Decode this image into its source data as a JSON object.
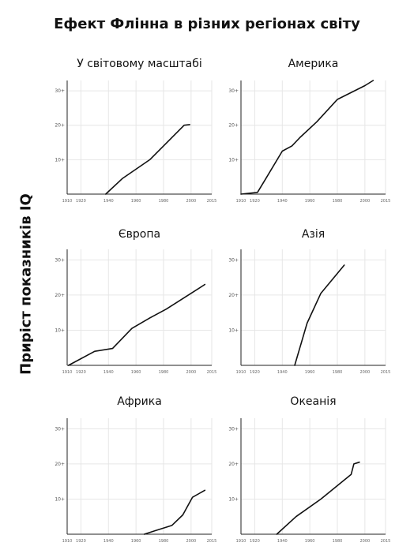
{
  "title": "Ефект Флінна в різних регіонах світу",
  "ylabel": "Приріст показників IQ",
  "chart_data": [
    {
      "type": "line",
      "title": "У світовому масштабі",
      "xlim": [
        1910,
        2015
      ],
      "ylim": [
        0,
        33
      ],
      "x_ticks": [
        "1910",
        "1920",
        "1940",
        "1960",
        "1980",
        "2000",
        "2015"
      ],
      "y_ticks": [
        "10+",
        "20+",
        "30+"
      ],
      "grid": true,
      "x": [
        1938,
        1950,
        1970,
        1985,
        1995,
        1999
      ],
      "y": [
        0,
        4.5,
        10,
        16,
        20,
        20.2
      ]
    },
    {
      "type": "line",
      "title": "Америка",
      "xlim": [
        1910,
        2015
      ],
      "ylim": [
        0,
        33
      ],
      "x_ticks": [
        "1910",
        "1920",
        "1940",
        "1960",
        "1980",
        "2000",
        "2015"
      ],
      "y_ticks": [
        "10+",
        "20+",
        "30+"
      ],
      "grid": true,
      "x": [
        1910,
        1922,
        1928,
        1940,
        1947,
        1953,
        1965,
        1980,
        2000,
        2006
      ],
      "y": [
        0,
        0.5,
        4.5,
        12.5,
        14,
        16.5,
        21,
        27.5,
        31.5,
        33
      ]
    },
    {
      "type": "line",
      "title": "Європа",
      "xlim": [
        1910,
        2015
      ],
      "ylim": [
        0,
        33
      ],
      "x_ticks": [
        "1910",
        "1920",
        "1940",
        "1960",
        "1980",
        "2000",
        "2015"
      ],
      "y_ticks": [
        "10+",
        "20+",
        "30+"
      ],
      "grid": true,
      "x": [
        1911,
        1930,
        1943,
        1957,
        1970,
        1982,
        2000,
        2010
      ],
      "y": [
        0,
        4,
        4.8,
        10.5,
        13.5,
        16,
        20.5,
        23
      ]
    },
    {
      "type": "line",
      "title": "Азія",
      "xlim": [
        1910,
        2015
      ],
      "ylim": [
        0,
        33
      ],
      "x_ticks": [
        "1910",
        "1920",
        "1940",
        "1960",
        "1980",
        "2000",
        "2015"
      ],
      "y_ticks": [
        "10+",
        "20+",
        "30+"
      ],
      "grid": true,
      "x": [
        1949,
        1958,
        1968,
        1985
      ],
      "y": [
        0,
        12,
        20.5,
        28.5
      ]
    },
    {
      "type": "line",
      "title": "Африка",
      "xlim": [
        1910,
        2015
      ],
      "ylim": [
        0,
        33
      ],
      "x_ticks": [
        "1910",
        "1920",
        "1940",
        "1960",
        "1980",
        "2000",
        "2015"
      ],
      "y_ticks": [
        "10+",
        "20+",
        "30+"
      ],
      "grid": true,
      "x": [
        1966,
        1974,
        1986,
        1994,
        2001,
        2010
      ],
      "y": [
        0,
        1,
        2.5,
        5.5,
        10.5,
        12.5
      ]
    },
    {
      "type": "line",
      "title": "Океанія",
      "xlim": [
        1910,
        2015
      ],
      "ylim": [
        0,
        33
      ],
      "x_ticks": [
        "1910",
        "1920",
        "1940",
        "1960",
        "1980",
        "2000",
        "2015"
      ],
      "y_ticks": [
        "10+",
        "20+",
        "30+"
      ],
      "grid": true,
      "x": [
        1936,
        1950,
        1968,
        1990,
        1992,
        1996
      ],
      "y": [
        0,
        5,
        10,
        17,
        20,
        20.5
      ]
    }
  ]
}
